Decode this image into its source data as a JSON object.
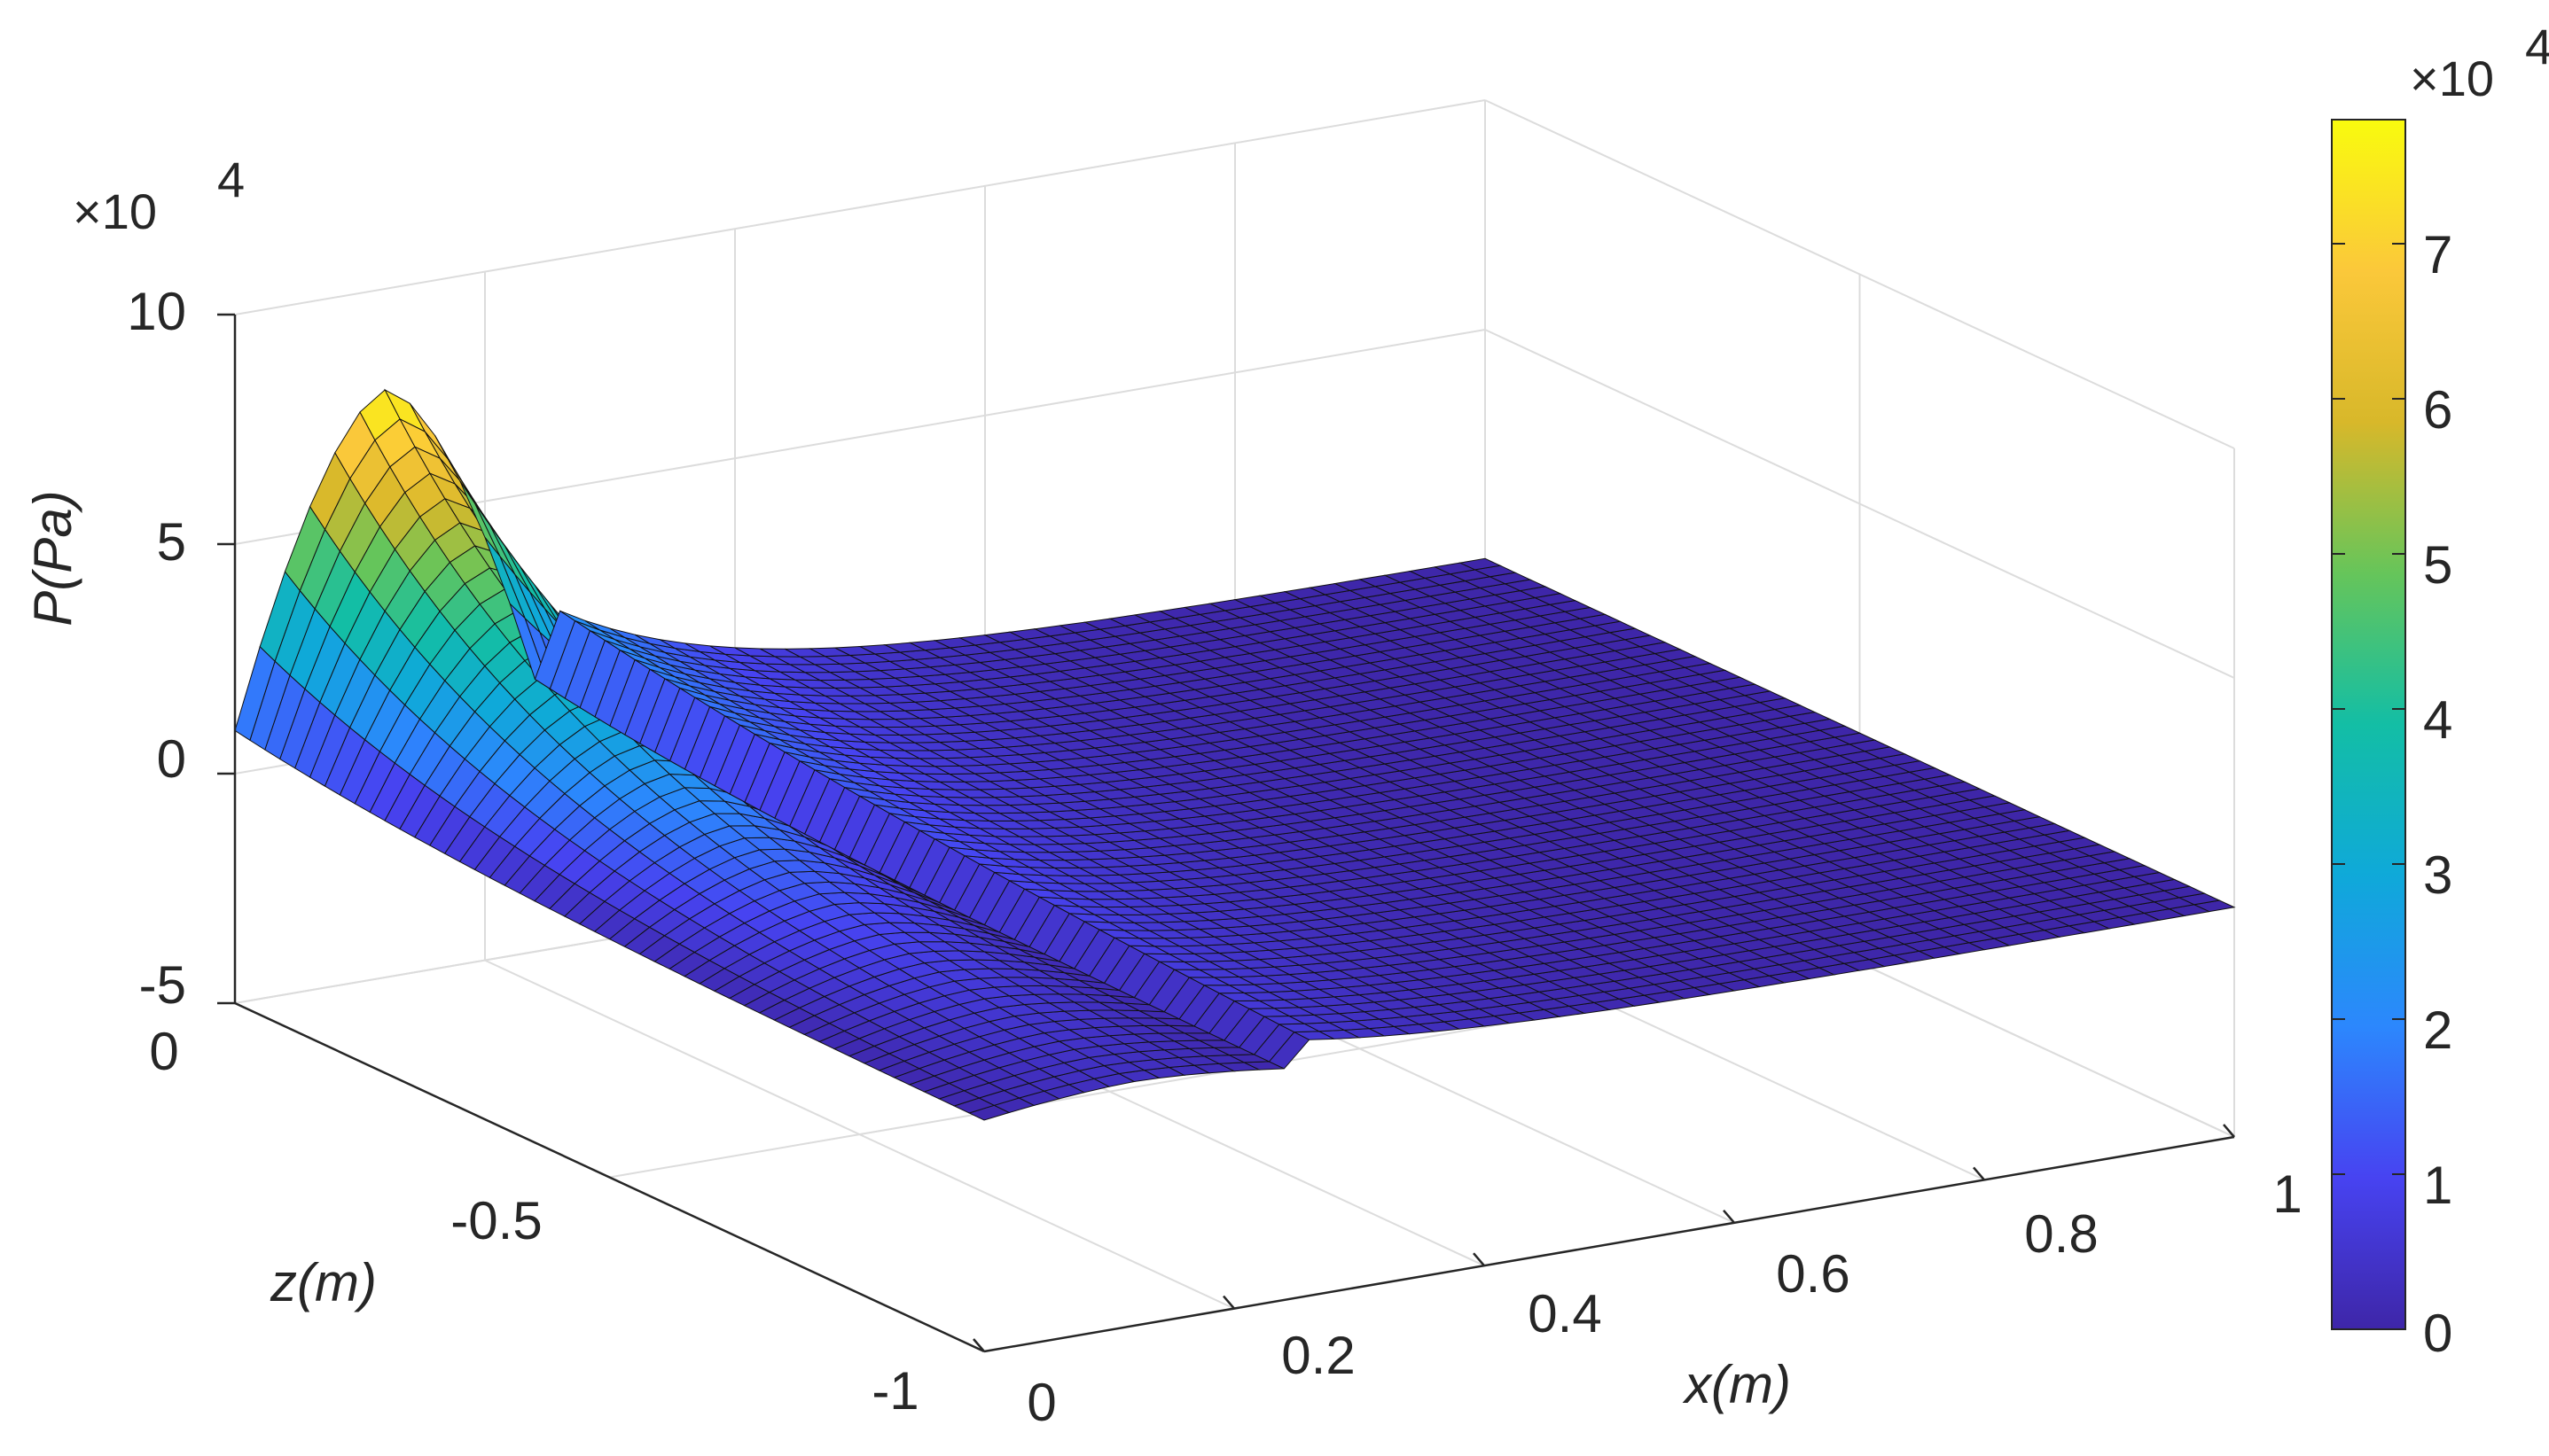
{
  "chart_data": {
    "type": "surface",
    "title": "",
    "xlabel": "x(m)",
    "ylabel": "z(m)",
    "zlabel": "P(Pa)",
    "xlim": [
      0,
      1
    ],
    "ylim": [
      -1,
      0
    ],
    "zlim": [
      -50000,
      100000
    ],
    "x_ticks": [
      "0",
      "0.2",
      "0.4",
      "0.6",
      "0.8",
      "1"
    ],
    "y_ticks": [
      "0",
      "-0.5",
      "-1"
    ],
    "z_ticks": [
      "10",
      "5",
      "0",
      "-5"
    ],
    "z_exponent_base": "×10",
    "z_exponent_power": "4",
    "grid": true,
    "colormap": "parula",
    "surface": {
      "x_step": 0.02,
      "z_step": 0.02,
      "peak_value": 78000,
      "description_points": [
        {
          "x": 0.0,
          "z": 0.0,
          "P": 0
        },
        {
          "x": 0.12,
          "z": 0.0,
          "P": 78000
        },
        {
          "x": 0.22,
          "z": 0.0,
          "P": 35000
        },
        {
          "x": 0.25,
          "z": 0.0,
          "P": 0
        },
        {
          "x": 1.0,
          "z": 0.0,
          "P": 0
        },
        {
          "x": 0.25,
          "z": -1.0,
          "P": 0
        },
        {
          "x": 1.0,
          "z": -1.0,
          "P": 0
        }
      ]
    },
    "colorbar": {
      "position": "right",
      "ticks": [
        "7",
        "6",
        "5",
        "4",
        "3",
        "2",
        "1",
        "0"
      ],
      "exponent_base": "×10",
      "exponent_power": "4",
      "range": [
        0,
        78000
      ]
    }
  }
}
